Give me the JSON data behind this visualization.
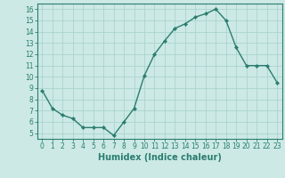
{
  "x": [
    0,
    1,
    2,
    3,
    4,
    5,
    6,
    7,
    8,
    9,
    10,
    11,
    12,
    13,
    14,
    15,
    16,
    17,
    18,
    19,
    20,
    21,
    22,
    23
  ],
  "y": [
    8.8,
    7.2,
    6.6,
    6.3,
    5.5,
    5.5,
    5.5,
    4.8,
    6.0,
    7.2,
    10.1,
    12.0,
    13.2,
    14.3,
    14.7,
    15.3,
    15.6,
    16.0,
    15.0,
    12.6,
    11.0,
    11.0,
    11.0,
    9.5
  ],
  "line_color": "#2a7d6f",
  "marker": "D",
  "marker_size": 2.2,
  "bg_color": "#cce9e5",
  "grid_color": "#aad4cf",
  "xlabel": "Humidex (Indice chaleur)",
  "ylim": [
    4.5,
    16.5
  ],
  "xlim": [
    -0.5,
    23.5
  ],
  "yticks": [
    5,
    6,
    7,
    8,
    9,
    10,
    11,
    12,
    13,
    14,
    15,
    16
  ],
  "xticks": [
    0,
    1,
    2,
    3,
    4,
    5,
    6,
    7,
    8,
    9,
    10,
    11,
    12,
    13,
    14,
    15,
    16,
    17,
    18,
    19,
    20,
    21,
    22,
    23
  ],
  "tick_label_fontsize": 5.5,
  "xlabel_fontsize": 7.0,
  "line_width": 1.0,
  "axis_color": "#2a7d6f"
}
